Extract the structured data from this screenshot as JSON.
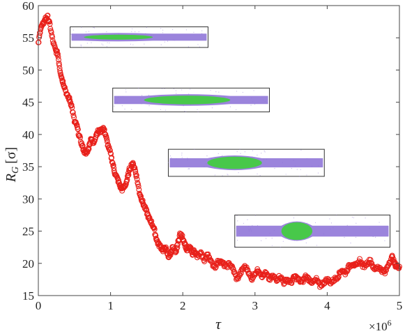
{
  "chart_data": {
    "type": "scatter",
    "xlabel": "τ",
    "ylabel_main": "R",
    "ylabel_sub": "G",
    "ylabel_unit": "[σ]",
    "x_multiplier": "×10",
    "x_multiplier_exp": "6",
    "xlim": [
      0,
      5
    ],
    "ylim": [
      15,
      60
    ],
    "x_ticks": [
      "0",
      "1",
      "2",
      "3",
      "4",
      "5"
    ],
    "y_ticks": [
      "15",
      "20",
      "25",
      "30",
      "35",
      "40",
      "45",
      "50",
      "55",
      "60"
    ],
    "grid": false,
    "colors": {
      "series": "#e8201a",
      "inset_polymer": "#8a6fd6",
      "inset_core": "#3fcf3a"
    },
    "series": [
      {
        "points": [
          [
            0.0,
            54.0
          ],
          [
            0.03,
            56.5
          ],
          [
            0.06,
            57.0
          ],
          [
            0.1,
            58.0
          ],
          [
            0.13,
            58.2
          ],
          [
            0.16,
            57.0
          ],
          [
            0.2,
            54.5
          ],
          [
            0.24,
            53.0
          ],
          [
            0.27,
            52.5
          ],
          [
            0.3,
            50.0
          ],
          [
            0.33,
            48.5
          ],
          [
            0.36,
            47.5
          ],
          [
            0.4,
            46.0
          ],
          [
            0.43,
            45.5
          ],
          [
            0.46,
            44.5
          ],
          [
            0.5,
            42.0
          ],
          [
            0.53,
            41.5
          ],
          [
            0.56,
            40.0
          ],
          [
            0.6,
            38.5
          ],
          [
            0.63,
            37.5
          ],
          [
            0.66,
            37.0
          ],
          [
            0.7,
            38.0
          ],
          [
            0.73,
            39.5
          ],
          [
            0.76,
            38.5
          ],
          [
            0.8,
            40.0
          ],
          [
            0.83,
            40.5
          ],
          [
            0.86,
            40.5
          ],
          [
            0.9,
            41.0
          ],
          [
            0.93,
            40.0
          ],
          [
            0.96,
            38.5
          ],
          [
            1.0,
            37.0
          ],
          [
            1.03,
            35.5
          ],
          [
            1.06,
            34.0
          ],
          [
            1.1,
            33.0
          ],
          [
            1.13,
            32.0
          ],
          [
            1.16,
            31.5
          ],
          [
            1.2,
            32.0
          ],
          [
            1.23,
            33.0
          ],
          [
            1.26,
            34.5
          ],
          [
            1.3,
            35.5
          ],
          [
            1.33,
            35.0
          ],
          [
            1.36,
            33.5
          ],
          [
            1.4,
            31.0
          ],
          [
            1.43,
            30.0
          ],
          [
            1.46,
            29.0
          ],
          [
            1.5,
            28.0
          ],
          [
            1.53,
            27.0
          ],
          [
            1.56,
            26.5
          ],
          [
            1.6,
            25.5
          ],
          [
            1.63,
            24.0
          ],
          [
            1.66,
            23.0
          ],
          [
            1.7,
            22.5
          ],
          [
            1.73,
            22.0
          ],
          [
            1.76,
            22.5
          ],
          [
            1.8,
            21.0
          ],
          [
            1.83,
            21.5
          ],
          [
            1.86,
            22.5
          ],
          [
            1.9,
            21.5
          ],
          [
            1.93,
            23.0
          ],
          [
            1.96,
            24.5
          ],
          [
            2.0,
            24.0
          ],
          [
            2.03,
            23.0
          ],
          [
            2.06,
            22.0
          ],
          [
            2.1,
            22.5
          ],
          [
            2.13,
            21.5
          ],
          [
            2.16,
            22.0
          ],
          [
            2.2,
            21.0
          ],
          [
            2.25,
            21.5
          ],
          [
            2.3,
            20.5
          ],
          [
            2.35,
            21.5
          ],
          [
            2.4,
            20.0
          ],
          [
            2.45,
            19.5
          ],
          [
            2.5,
            20.5
          ],
          [
            2.55,
            20.0
          ],
          [
            2.6,
            19.5
          ],
          [
            2.65,
            20.0
          ],
          [
            2.7,
            19.0
          ],
          [
            2.75,
            17.5
          ],
          [
            2.8,
            18.5
          ],
          [
            2.85,
            19.5
          ],
          [
            2.9,
            19.0
          ],
          [
            2.95,
            17.5
          ],
          [
            3.0,
            18.5
          ],
          [
            3.05,
            19.0
          ],
          [
            3.1,
            18.0
          ],
          [
            3.15,
            18.5
          ],
          [
            3.2,
            17.5
          ],
          [
            3.25,
            18.0
          ],
          [
            3.3,
            17.5
          ],
          [
            3.35,
            18.0
          ],
          [
            3.4,
            17.0
          ],
          [
            3.45,
            17.5
          ],
          [
            3.5,
            17.0
          ],
          [
            3.55,
            18.0
          ],
          [
            3.6,
            17.5
          ],
          [
            3.65,
            17.0
          ],
          [
            3.7,
            18.0
          ],
          [
            3.75,
            17.5
          ],
          [
            3.8,
            17.0
          ],
          [
            3.85,
            17.5
          ],
          [
            3.9,
            16.5
          ],
          [
            3.95,
            17.0
          ],
          [
            4.0,
            17.5
          ],
          [
            4.05,
            17.0
          ],
          [
            4.1,
            17.5
          ],
          [
            4.15,
            18.0
          ],
          [
            4.2,
            19.0
          ],
          [
            4.25,
            18.5
          ],
          [
            4.3,
            19.5
          ],
          [
            4.35,
            20.0
          ],
          [
            4.4,
            19.5
          ],
          [
            4.45,
            20.5
          ],
          [
            4.5,
            19.5
          ],
          [
            4.55,
            20.0
          ],
          [
            4.6,
            20.5
          ],
          [
            4.65,
            19.0
          ],
          [
            4.7,
            19.5
          ],
          [
            4.75,
            19.0
          ],
          [
            4.8,
            18.5
          ],
          [
            4.85,
            20.0
          ],
          [
            4.9,
            21.0
          ],
          [
            4.93,
            20.0
          ],
          [
            4.96,
            19.5
          ],
          [
            5.0,
            19.5
          ]
        ]
      }
    ],
    "insets": [
      {
        "x0": 0.44,
        "x1": 2.35,
        "ytop": 56.7,
        "ybot": 53.5,
        "core": [
          0.1,
          0.6
        ],
        "bulge": 0.0
      },
      {
        "x0": 1.03,
        "x1": 3.2,
        "ytop": 47.2,
        "ybot": 43.5,
        "core": [
          0.2,
          0.75
        ],
        "bulge": 0.4
      },
      {
        "x0": 1.8,
        "x1": 3.96,
        "ytop": 37.7,
        "ybot": 33.5,
        "core": [
          0.25,
          0.6
        ],
        "bulge": 0.7
      },
      {
        "x0": 2.72,
        "x1": 4.87,
        "ytop": 27.5,
        "ybot": 22.5,
        "core": [
          0.3,
          0.5
        ],
        "bulge": 1.0
      }
    ]
  }
}
